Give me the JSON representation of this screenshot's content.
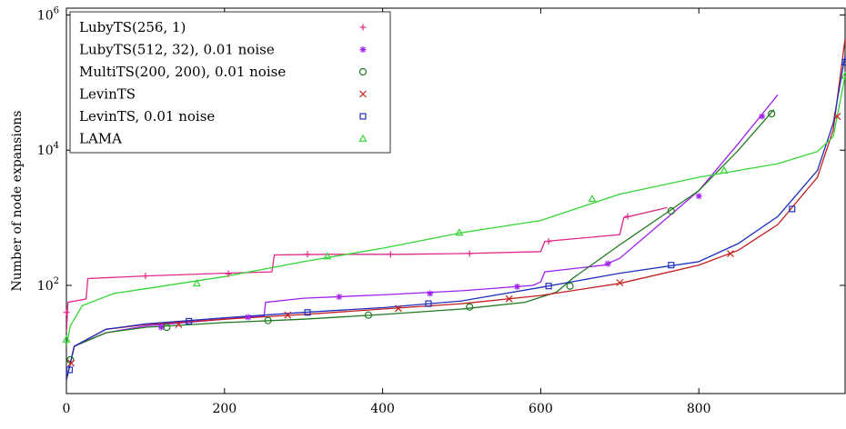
{
  "chart_data": {
    "type": "line",
    "xlabel": "",
    "ylabel": "Number of node expansions",
    "xlim": [
      0,
      985
    ],
    "ylim_log10": [
      0.4,
      6.1
    ],
    "yscale": "log",
    "xticks": [
      0,
      200,
      400,
      600,
      800
    ],
    "xtick_labels": [
      "0",
      "200",
      "400",
      "600",
      "800"
    ],
    "yticks_log10": [
      2,
      4,
      6
    ],
    "ytick_bases": [
      "10",
      "10",
      "10"
    ],
    "ytick_exps": [
      "2",
      "4",
      "6"
    ],
    "legend_position": "top-left",
    "series": [
      {
        "name": "LubyTS(256, 1)",
        "color": "#e0288a",
        "marker": "plus",
        "points": [
          [
            0,
            1.3
          ],
          [
            2,
            1.75
          ],
          [
            25,
            1.8
          ],
          [
            27,
            2.1
          ],
          [
            100,
            2.14
          ],
          [
            200,
            2.18
          ],
          [
            260,
            2.2
          ],
          [
            263,
            2.45
          ],
          [
            330,
            2.46
          ],
          [
            420,
            2.46
          ],
          [
            500,
            2.47
          ],
          [
            600,
            2.5
          ],
          [
            605,
            2.65
          ],
          [
            700,
            2.75
          ],
          [
            705,
            3.0
          ],
          [
            760,
            3.15
          ]
        ],
        "markers": [
          [
            0,
            1.6
          ],
          [
            100,
            2.14
          ],
          [
            205,
            2.17
          ],
          [
            305,
            2.46
          ],
          [
            410,
            2.46
          ],
          [
            510,
            2.47
          ],
          [
            610,
            2.65
          ],
          [
            710,
            3.02
          ]
        ]
      },
      {
        "name": "LubyTS(512, 32), 0.01 noise",
        "color": "#a020f0",
        "marker": "asterisk",
        "points": [
          [
            0,
            0.6
          ],
          [
            10,
            1.1
          ],
          [
            50,
            1.3
          ],
          [
            100,
            1.4
          ],
          [
            200,
            1.5
          ],
          [
            250,
            1.55
          ],
          [
            252,
            1.75
          ],
          [
            300,
            1.81
          ],
          [
            400,
            1.86
          ],
          [
            500,
            1.92
          ],
          [
            590,
            2.0
          ],
          [
            600,
            2.05
          ],
          [
            605,
            2.2
          ],
          [
            680,
            2.3
          ],
          [
            700,
            2.4
          ],
          [
            750,
            2.9
          ],
          [
            800,
            3.4
          ],
          [
            850,
            4.1
          ],
          [
            900,
            4.82
          ]
        ],
        "markers": [
          [
            120,
            1.38
          ],
          [
            230,
            1.53
          ],
          [
            345,
            1.83
          ],
          [
            460,
            1.88
          ],
          [
            570,
            1.98
          ],
          [
            685,
            2.32
          ],
          [
            800,
            3.32
          ],
          [
            880,
            4.5
          ]
        ]
      },
      {
        "name": "MultiTS(200, 200), 0.01 noise",
        "color": "#1f7a1f",
        "marker": "circle",
        "points": [
          [
            0,
            0.6
          ],
          [
            10,
            1.1
          ],
          [
            50,
            1.3
          ],
          [
            100,
            1.38
          ],
          [
            200,
            1.45
          ],
          [
            300,
            1.5
          ],
          [
            400,
            1.57
          ],
          [
            500,
            1.65
          ],
          [
            580,
            1.75
          ],
          [
            620,
            1.9
          ],
          [
            640,
            2.1
          ],
          [
            700,
            2.6
          ],
          [
            750,
            3.0
          ],
          [
            800,
            3.4
          ],
          [
            850,
            4.0
          ],
          [
            895,
            4.6
          ]
        ],
        "markers": [
          [
            5,
            0.9
          ],
          [
            127,
            1.38
          ],
          [
            255,
            1.48
          ],
          [
            382,
            1.56
          ],
          [
            510,
            1.68
          ],
          [
            637,
            1.99
          ],
          [
            765,
            3.1
          ],
          [
            892,
            4.54
          ]
        ]
      },
      {
        "name": "LevinTS",
        "color": "#c41e1e",
        "marker": "cross",
        "points": [
          [
            0,
            0.6
          ],
          [
            10,
            1.1
          ],
          [
            50,
            1.35
          ],
          [
            100,
            1.42
          ],
          [
            200,
            1.5
          ],
          [
            300,
            1.57
          ],
          [
            400,
            1.65
          ],
          [
            500,
            1.73
          ],
          [
            600,
            1.85
          ],
          [
            700,
            2.03
          ],
          [
            800,
            2.3
          ],
          [
            850,
            2.52
          ],
          [
            900,
            2.9
          ],
          [
            950,
            3.6
          ],
          [
            970,
            4.3
          ],
          [
            985,
            5.65
          ]
        ],
        "markers": [
          [
            6,
            0.85
          ],
          [
            142,
            1.42
          ],
          [
            280,
            1.56
          ],
          [
            420,
            1.66
          ],
          [
            560,
            1.8
          ],
          [
            700,
            2.04
          ],
          [
            840,
            2.47
          ],
          [
            975,
            4.5
          ]
        ]
      },
      {
        "name": "LevinTS, 0.01 noise",
        "color": "#1f2fbf",
        "marker": "square",
        "points": [
          [
            0,
            0.6
          ],
          [
            10,
            1.1
          ],
          [
            50,
            1.35
          ],
          [
            100,
            1.43
          ],
          [
            200,
            1.52
          ],
          [
            300,
            1.6
          ],
          [
            400,
            1.67
          ],
          [
            500,
            1.77
          ],
          [
            600,
            1.97
          ],
          [
            700,
            2.18
          ],
          [
            800,
            2.35
          ],
          [
            850,
            2.62
          ],
          [
            900,
            3.02
          ],
          [
            950,
            3.7
          ],
          [
            970,
            4.4
          ],
          [
            985,
            5.4
          ]
        ],
        "markers": [
          [
            4,
            0.75
          ],
          [
            155,
            1.47
          ],
          [
            305,
            1.6
          ],
          [
            458,
            1.73
          ],
          [
            610,
            1.99
          ],
          [
            765,
            2.3
          ],
          [
            918,
            3.13
          ],
          [
            985,
            5.3
          ]
        ]
      },
      {
        "name": "LAMA",
        "color": "#33d633",
        "marker": "triangle",
        "points": [
          [
            0,
            1.1
          ],
          [
            5,
            1.4
          ],
          [
            20,
            1.7
          ],
          [
            60,
            1.88
          ],
          [
            100,
            1.95
          ],
          [
            200,
            2.13
          ],
          [
            300,
            2.35
          ],
          [
            400,
            2.55
          ],
          [
            500,
            2.78
          ],
          [
            600,
            2.96
          ],
          [
            700,
            3.35
          ],
          [
            800,
            3.6
          ],
          [
            900,
            3.8
          ],
          [
            950,
            3.98
          ],
          [
            970,
            4.2
          ],
          [
            985,
            5.1
          ]
        ],
        "markers": [
          [
            0,
            1.2
          ],
          [
            165,
            2.03
          ],
          [
            330,
            2.43
          ],
          [
            497,
            2.78
          ],
          [
            665,
            3.28
          ],
          [
            832,
            3.7
          ],
          [
            985,
            5.1
          ]
        ]
      }
    ]
  }
}
